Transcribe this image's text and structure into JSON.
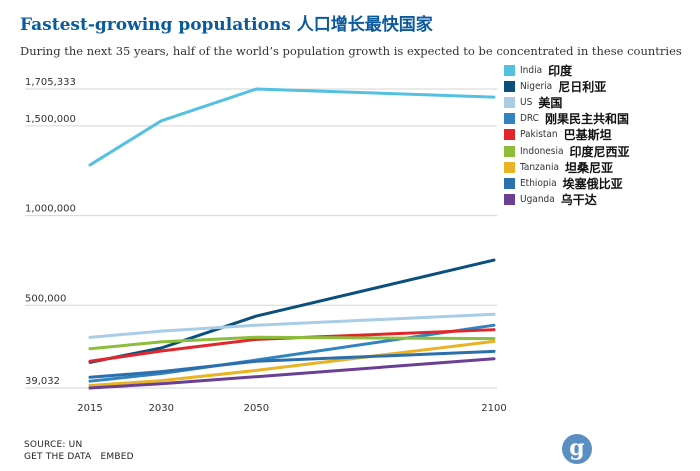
{
  "header": {
    "title": "Fastest-growing populations  人口增长最快国家",
    "subtitle": "During the next 35 years, half of the world’s population growth is expected to be concentrated in these countries"
  },
  "chart_data": {
    "type": "line",
    "x": [
      2015,
      2030,
      2050,
      2100
    ],
    "x_tick_labels": [
      "2015",
      "2030",
      "2050",
      "2100"
    ],
    "y_ticks": [
      39032,
      500000,
      1000000,
      1500000,
      1705333
    ],
    "y_tick_labels": [
      "39,032",
      "500,000",
      "1,000,000",
      "1,500,000",
      "1,705,333"
    ],
    "ylim": [
      39032,
      1705333
    ],
    "grid": true,
    "legend_position": "right",
    "series": [
      {
        "name": "India",
        "cn": "印度",
        "color": "#55c1e0",
        "values": [
          1282000,
          1528000,
          1705333,
          1660000
        ]
      },
      {
        "name": "Nigeria",
        "cn": "尼日利亚",
        "color": "#0b4f7c",
        "values": [
          182000,
          262000,
          440000,
          752000
        ]
      },
      {
        "name": "US",
        "cn": "美国",
        "color": "#a9cde6",
        "values": [
          321000,
          356000,
          389000,
          450000
        ]
      },
      {
        "name": "DRC",
        "cn": "刚果民主共和国",
        "color": "#3284be",
        "values": [
          77000,
          120000,
          195000,
          389000
        ]
      },
      {
        "name": "Pakistan",
        "cn": "巴基斯坦",
        "color": "#e2262b",
        "values": [
          188000,
          245000,
          310000,
          364000
        ]
      },
      {
        "name": "Indonesia",
        "cn": "印度尼西亚",
        "color": "#8cbd3c",
        "values": [
          258000,
          296000,
          322000,
          314000
        ]
      },
      {
        "name": "Tanzania",
        "cn": "坦桑尼亚",
        "color": "#e8b325",
        "values": [
          53000,
          80000,
          137000,
          299000
        ]
      },
      {
        "name": "Ethiopia",
        "cn": "埃塞俄比亚",
        "color": "#2c6fad",
        "values": [
          99000,
          130000,
          188000,
          243000
        ]
      },
      {
        "name": "Uganda",
        "cn": "乌干达",
        "color": "#6a3f94",
        "values": [
          39032,
          63000,
          102000,
          202000
        ]
      }
    ]
  },
  "footer": {
    "source": "SOURCE: UN",
    "get_data": "GET THE DATA",
    "embed": "EMBED"
  },
  "logo": {
    "letter": "g",
    "color": "#5b8fc4"
  }
}
